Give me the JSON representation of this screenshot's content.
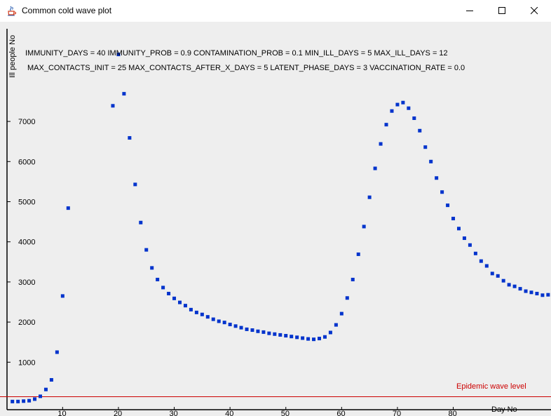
{
  "window": {
    "title": "Common cold wave plot",
    "minimize_icon": "minimize-icon",
    "maximize_icon": "maximize-icon",
    "close_icon": "close-icon",
    "app_icon": "java-coffee-cup-icon"
  },
  "info": {
    "line1": "IMMUNITY_DAYS = 40 IMMUNITY_PROB = 0.9 CONTAMINATION_PROB = 0.1 MIN_ILL_DAYS = 5 MAX_ILL_DAYS = 12",
    "line2": "MAX_CONTACTS_INIT = 25 MAX_CONTACTS_AFTER_X_DAYS = 5 LATENT_PHASE_DAYS = 3 VACCINATION_RATE = 0.0"
  },
  "chart_data": {
    "type": "scatter",
    "title": "",
    "xlabel": "Day No",
    "ylabel": "Ill people No",
    "xlim": [
      0,
      97
    ],
    "ylim": [
      -150,
      9300
    ],
    "grid": false,
    "point_color": "#0033cc",
    "epidemic_level": {
      "label": "Epidemic wave level",
      "value": 0,
      "color": "#cc0000"
    },
    "x_ticks": [
      10,
      20,
      30,
      40,
      50,
      60,
      70,
      80
    ],
    "y_ticks": [
      1000,
      2000,
      3000,
      4000,
      5000,
      6000,
      7000
    ],
    "x": [
      1,
      2,
      3,
      4,
      5,
      6,
      7,
      8,
      9,
      10,
      11,
      19,
      20,
      21,
      22,
      23,
      24,
      25,
      26,
      27,
      28,
      29,
      30,
      31,
      32,
      33,
      34,
      35,
      36,
      37,
      38,
      39,
      40,
      41,
      42,
      43,
      44,
      45,
      46,
      47,
      48,
      49,
      50,
      51,
      52,
      53,
      54,
      55,
      56,
      57,
      58,
      59,
      60,
      61,
      62,
      63,
      64,
      65,
      66,
      67,
      68,
      69,
      70,
      71,
      72,
      73,
      74,
      75,
      76,
      77,
      78,
      79,
      80,
      81,
      82,
      83,
      84,
      85,
      86,
      87,
      88,
      89,
      90,
      91,
      92,
      93,
      94,
      95,
      96,
      97
    ],
    "y": [
      20,
      20,
      30,
      40,
      80,
      150,
      320,
      560,
      1250,
      2650,
      4840,
      7390,
      8670,
      7690,
      6590,
      5430,
      4480,
      3800,
      3350,
      3060,
      2860,
      2710,
      2590,
      2490,
      2410,
      2310,
      2240,
      2190,
      2130,
      2070,
      2020,
      1990,
      1940,
      1900,
      1860,
      1820,
      1800,
      1770,
      1750,
      1720,
      1700,
      1680,
      1660,
      1640,
      1620,
      1600,
      1580,
      1570,
      1590,
      1630,
      1740,
      1930,
      2210,
      2600,
      3060,
      3690,
      4380,
      5110,
      5830,
      6440,
      6920,
      7260,
      7420,
      7470,
      7330,
      7080,
      6770,
      6360,
      6000,
      5590,
      5240,
      4910,
      4580,
      4330,
      4090,
      3920,
      3710,
      3520,
      3400,
      3210,
      3150,
      3030,
      2930,
      2890,
      2830,
      2770,
      2740,
      2710,
      2670,
      2680
    ]
  }
}
